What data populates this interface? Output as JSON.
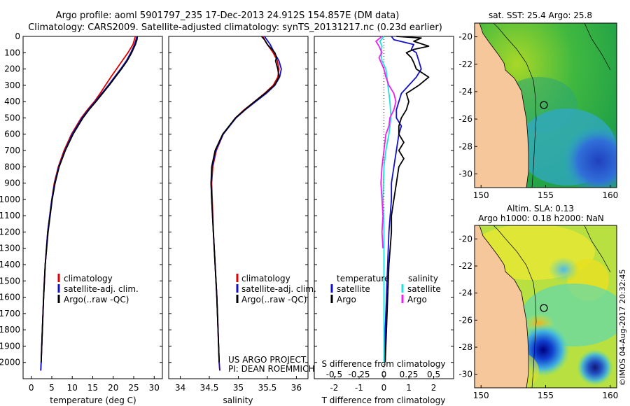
{
  "header": {
    "title_line1": "Argo profile: aoml 5901797_235 17-Dec-2013 24.912S 154.857E (DM data)",
    "title_line2": "Climatology: CARS2009. Satellite-adjusted climatology: synTS_20131217.nc (0.23d earlier)"
  },
  "colors": {
    "climatology": "#e00000",
    "satellite": "#1010c8",
    "argo": "#000000",
    "salinity_sat": "#20e0e0",
    "salinity_argo": "#f020f0",
    "land": "#f5c79a"
  },
  "chart_data": [
    {
      "type": "line",
      "id": "temperature",
      "xlabel": "temperature (deg C)",
      "ylabel": "",
      "xlim": [
        -2,
        32
      ],
      "ylim": [
        2100,
        0
      ],
      "xticks": [
        0,
        5,
        10,
        15,
        20,
        25,
        30
      ],
      "yticks": [
        0,
        100,
        200,
        300,
        400,
        500,
        600,
        700,
        800,
        900,
        1000,
        1100,
        1200,
        1300,
        1400,
        1500,
        1600,
        1700,
        1800,
        1900,
        2000
      ],
      "legend": {
        "position": "lower-center",
        "entries": [
          "climatology",
          "satellite-adj. clim.",
          "Argo(..raw -QC)"
        ]
      },
      "series": [
        {
          "name": "climatology",
          "color": "#e00000",
          "depth": [
            0,
            50,
            100,
            150,
            200,
            250,
            300,
            350,
            400,
            450,
            500,
            600,
            700,
            800,
            900,
            1000,
            1200,
            1400,
            1600,
            1800,
            2000,
            2050
          ],
          "values": [
            25.4,
            24.8,
            23.6,
            22.2,
            20.8,
            19.4,
            18.1,
            16.8,
            15.4,
            13.7,
            12.2,
            9.8,
            8.0,
            6.6,
            5.6,
            5.0,
            4.0,
            3.4,
            3.0,
            2.7,
            2.4,
            2.3
          ]
        },
        {
          "name": "satellite-adj. clim.",
          "color": "#1010c8",
          "depth": [
            0,
            50,
            100,
            150,
            200,
            250,
            300,
            350,
            400,
            450,
            500,
            600,
            700,
            800,
            900,
            1000,
            1200,
            1400,
            1600,
            1800,
            2000,
            2050
          ],
          "values": [
            25.8,
            25.2,
            24.3,
            23.2,
            21.8,
            20.3,
            18.8,
            17.2,
            15.6,
            13.9,
            12.4,
            10.0,
            8.2,
            6.7,
            5.7,
            5.0,
            4.0,
            3.4,
            3.0,
            2.7,
            2.4,
            2.3
          ]
        },
        {
          "name": "Argo(..raw -QC)",
          "color": "#000000",
          "depth": [
            0,
            20,
            50,
            100,
            150,
            200,
            250,
            300,
            350,
            400,
            450,
            500,
            600,
            700,
            800,
            900,
            1000,
            1200,
            1400,
            1600,
            1800,
            2000
          ],
          "values": [
            25.9,
            25.8,
            25.4,
            24.5,
            23.4,
            22.0,
            20.5,
            19.0,
            17.4,
            15.8,
            14.1,
            12.6,
            10.2,
            8.3,
            6.8,
            5.8,
            5.1,
            4.1,
            3.4,
            3.0,
            2.7,
            2.4
          ]
        }
      ]
    },
    {
      "type": "line",
      "id": "salinity",
      "xlabel": "salinity",
      "ylabel": "",
      "xlim": [
        33.8,
        36.2
      ],
      "ylim": [
        2100,
        0
      ],
      "xticks": [
        34,
        34.5,
        35,
        35.5,
        36
      ],
      "legend": {
        "position": "lower-center",
        "entries": [
          "climatology",
          "satellite-adj. clim.",
          "Argo(..raw -QC)"
        ]
      },
      "annotations": [
        "US ARGO PROJECT",
        "PI: DEAN ROEMMICH"
      ],
      "series": [
        {
          "name": "climatology",
          "color": "#e00000",
          "depth": [
            0,
            50,
            100,
            150,
            200,
            250,
            300,
            350,
            400,
            450,
            500,
            600,
            700,
            800,
            900,
            1000,
            1200,
            1400,
            1600,
            1800,
            2000,
            2050
          ],
          "values": [
            35.42,
            35.5,
            35.6,
            35.67,
            35.7,
            35.68,
            35.6,
            35.45,
            35.28,
            35.1,
            34.95,
            34.74,
            34.62,
            34.56,
            34.54,
            34.55,
            34.57,
            34.6,
            34.63,
            34.65,
            34.67,
            34.68
          ]
        },
        {
          "name": "satellite-adj. clim.",
          "color": "#1010c8",
          "depth": [
            0,
            50,
            100,
            150,
            200,
            250,
            300,
            350,
            400,
            450,
            500,
            600,
            700,
            800,
            900,
            1000,
            1200,
            1400,
            1600,
            1800,
            2000,
            2050
          ],
          "values": [
            35.45,
            35.55,
            35.62,
            35.7,
            35.74,
            35.71,
            35.63,
            35.48,
            35.3,
            35.12,
            34.96,
            34.74,
            34.61,
            34.55,
            34.53,
            34.54,
            34.57,
            34.6,
            34.63,
            34.65,
            34.67,
            34.68
          ]
        },
        {
          "name": "Argo(..raw -QC)",
          "color": "#000000",
          "depth": [
            0,
            20,
            50,
            80,
            100,
            130,
            150,
            200,
            250,
            300,
            350,
            400,
            450,
            500,
            600,
            700,
            800,
            900,
            1000,
            1200,
            1400,
            1600,
            1800,
            2000
          ],
          "values": [
            35.4,
            35.45,
            35.5,
            35.58,
            35.63,
            35.66,
            35.64,
            35.68,
            35.7,
            35.62,
            35.46,
            35.28,
            35.11,
            34.95,
            34.73,
            34.6,
            34.54,
            34.53,
            34.54,
            34.57,
            34.6,
            34.63,
            34.65,
            34.67
          ]
        }
      ]
    },
    {
      "type": "line",
      "id": "difference",
      "xlabel": "T difference from climatology",
      "xlabel_top": "S difference from climatology",
      "xlim": [
        -2.8,
        2.8
      ],
      "ylim": [
        2100,
        0
      ],
      "xticks": [
        -2,
        -1,
        0,
        1,
        2
      ],
      "xtick_labels": [
        "-2",
        "-1",
        "0",
        "1",
        "2"
      ],
      "xticks_s": [
        -0.5,
        -0.25,
        0,
        0.25,
        0.5
      ],
      "xtick_labels_s": [
        "-0.5",
        "-0.25",
        "0",
        "0.25",
        "0.5"
      ],
      "legend": {
        "position": "lower-center",
        "col1_title": "temperature",
        "col2_title": "salinity",
        "entries": [
          "satellite",
          "Argo",
          "satellite",
          "Argo"
        ]
      },
      "series": [
        {
          "name": "temperature satellite",
          "color": "#1010c8",
          "depth": [
            0,
            20,
            50,
            80,
            100,
            150,
            200,
            250,
            300,
            350,
            400,
            450,
            500,
            550,
            600,
            700,
            800,
            900,
            1000,
            1200,
            1400,
            1600,
            1800,
            2000
          ],
          "values": [
            0.3,
            0.4,
            1.2,
            1.1,
            1.3,
            1.4,
            1.5,
            1.3,
            1.0,
            0.7,
            0.6,
            0.5,
            0.5,
            0.7,
            0.6,
            0.5,
            0.4,
            0.3,
            0.3,
            0.2,
            0.15,
            0.1,
            0.05,
            0.05
          ]
        },
        {
          "name": "temperature Argo",
          "color": "#000000",
          "depth": [
            0,
            10,
            30,
            60,
            80,
            100,
            130,
            160,
            200,
            250,
            300,
            350,
            400,
            450,
            500,
            550,
            600,
            650,
            700,
            750,
            800,
            900,
            1000,
            1100,
            1200,
            1400,
            1600,
            1800,
            2000
          ],
          "values": [
            0.5,
            1.5,
            1.2,
            1.8,
            1.2,
            0.9,
            1.1,
            1.2,
            1.3,
            1.8,
            1.4,
            0.9,
            1.0,
            0.9,
            0.7,
            0.6,
            0.6,
            0.8,
            0.6,
            0.8,
            0.6,
            0.5,
            0.4,
            0.3,
            0.3,
            0.2,
            0.15,
            0.1,
            0.05
          ]
        },
        {
          "name": "salinity satellite",
          "color": "#20e0e0",
          "depth": [
            0,
            30,
            60,
            100,
            150,
            200,
            250,
            300,
            400,
            500,
            600,
            700,
            800,
            1000,
            1200,
            1400,
            1600,
            1800,
            2000
          ],
          "values": [
            0.0,
            -0.04,
            -0.02,
            -0.03,
            -0.02,
            0.02,
            0.03,
            0.04,
            0.06,
            0.07,
            0.05,
            0.02,
            0.0,
            -0.01,
            0.0,
            0.0,
            0.0,
            0.0,
            0.0
          ]
        },
        {
          "name": "salinity Argo",
          "color": "#f020f0",
          "depth": [
            0,
            30,
            60,
            100,
            130,
            200,
            250,
            300,
            350,
            400,
            450,
            500,
            550,
            600,
            700,
            800,
            900,
            1000,
            1100,
            1200,
            1300
          ],
          "values": [
            -0.02,
            -0.08,
            -0.05,
            -0.02,
            -0.05,
            0.0,
            0.02,
            0.05,
            0.1,
            0.12,
            0.1,
            0.06,
            0.05,
            0.02,
            0.0,
            -0.02,
            -0.03,
            -0.02,
            -0.01,
            -0.02,
            -0.01
          ]
        }
      ]
    }
  ],
  "maps": [
    {
      "title": "sat. SST: 25.4 Argo: 25.8",
      "lon_range": [
        149.5,
        160.5
      ],
      "lat_range": [
        -31,
        -19
      ],
      "xticks": [
        150,
        155,
        160
      ],
      "yticks": [
        -20,
        -22,
        -24,
        -26,
        -28,
        -30
      ],
      "marker": {
        "lon": 154.857,
        "lat": -24.912
      }
    },
    {
      "title_line1": "Altim. SLA: 0.13",
      "title_line2": "Argo h1000: 0.18 h2000: NaN",
      "lon_range": [
        149.5,
        160.5
      ],
      "lat_range": [
        -31,
        -19
      ],
      "xticks": [
        150,
        155,
        160
      ],
      "yticks": [
        -20,
        -22,
        -24,
        -26,
        -28,
        -30
      ],
      "marker": {
        "lon": 154.857,
        "lat": -24.912
      }
    }
  ],
  "footer": {
    "credit": "©IMOS 04-Aug-2017 20:32:45"
  }
}
